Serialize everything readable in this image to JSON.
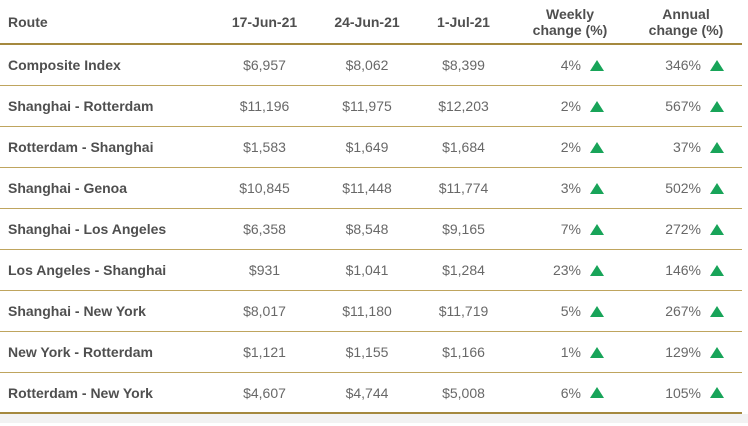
{
  "colors": {
    "accent_gold": "#a5893f",
    "row_line_gold": "#bfa55e",
    "up_green": "#18a459",
    "header_text": "#4f4f4f",
    "value_text": "#686868"
  },
  "icons": {
    "up_triangle": "green-up-triangle"
  },
  "chart_data": {
    "type": "table",
    "title": "",
    "columns": [
      "Route",
      "17-Jun-21",
      "24-Jun-21",
      "1-Jul-21",
      "Weekly change (%)",
      "Annual change (%)"
    ],
    "rows": [
      {
        "route": "Composite Index",
        "v1": "$6,957",
        "v2": "$8,062",
        "v3": "$8,399",
        "weekly": "4%",
        "weekly_dir": "up",
        "annual": "346%",
        "annual_dir": "up"
      },
      {
        "route": "Shanghai - Rotterdam",
        "v1": "$11,196",
        "v2": "$11,975",
        "v3": "$12,203",
        "weekly": "2%",
        "weekly_dir": "up",
        "annual": "567%",
        "annual_dir": "up"
      },
      {
        "route": "Rotterdam - Shanghai",
        "v1": "$1,583",
        "v2": "$1,649",
        "v3": "$1,684",
        "weekly": "2%",
        "weekly_dir": "up",
        "annual": "37%",
        "annual_dir": "up"
      },
      {
        "route": "Shanghai - Genoa",
        "v1": "$10,845",
        "v2": "$11,448",
        "v3": "$11,774",
        "weekly": "3%",
        "weekly_dir": "up",
        "annual": "502%",
        "annual_dir": "up"
      },
      {
        "route": "Shanghai - Los Angeles",
        "v1": "$6,358",
        "v2": "$8,548",
        "v3": "$9,165",
        "weekly": "7%",
        "weekly_dir": "up",
        "annual": "272%",
        "annual_dir": "up"
      },
      {
        "route": "Los Angeles - Shanghai",
        "v1": "$931",
        "v2": "$1,041",
        "v3": "$1,284",
        "weekly": "23%",
        "weekly_dir": "up",
        "annual": "146%",
        "annual_dir": "up"
      },
      {
        "route": "Shanghai - New York",
        "v1": "$8,017",
        "v2": "$11,180",
        "v3": "$11,719",
        "weekly": "5%",
        "weekly_dir": "up",
        "annual": "267%",
        "annual_dir": "up"
      },
      {
        "route": "New York - Rotterdam",
        "v1": "$1,121",
        "v2": "$1,155",
        "v3": "$1,166",
        "weekly": "1%",
        "weekly_dir": "up",
        "annual": "129%",
        "annual_dir": "up"
      },
      {
        "route": "Rotterdam - New York",
        "v1": "$4,607",
        "v2": "$4,744",
        "v3": "$5,008",
        "weekly": "6%",
        "weekly_dir": "up",
        "annual": "105%",
        "annual_dir": "up"
      }
    ]
  }
}
